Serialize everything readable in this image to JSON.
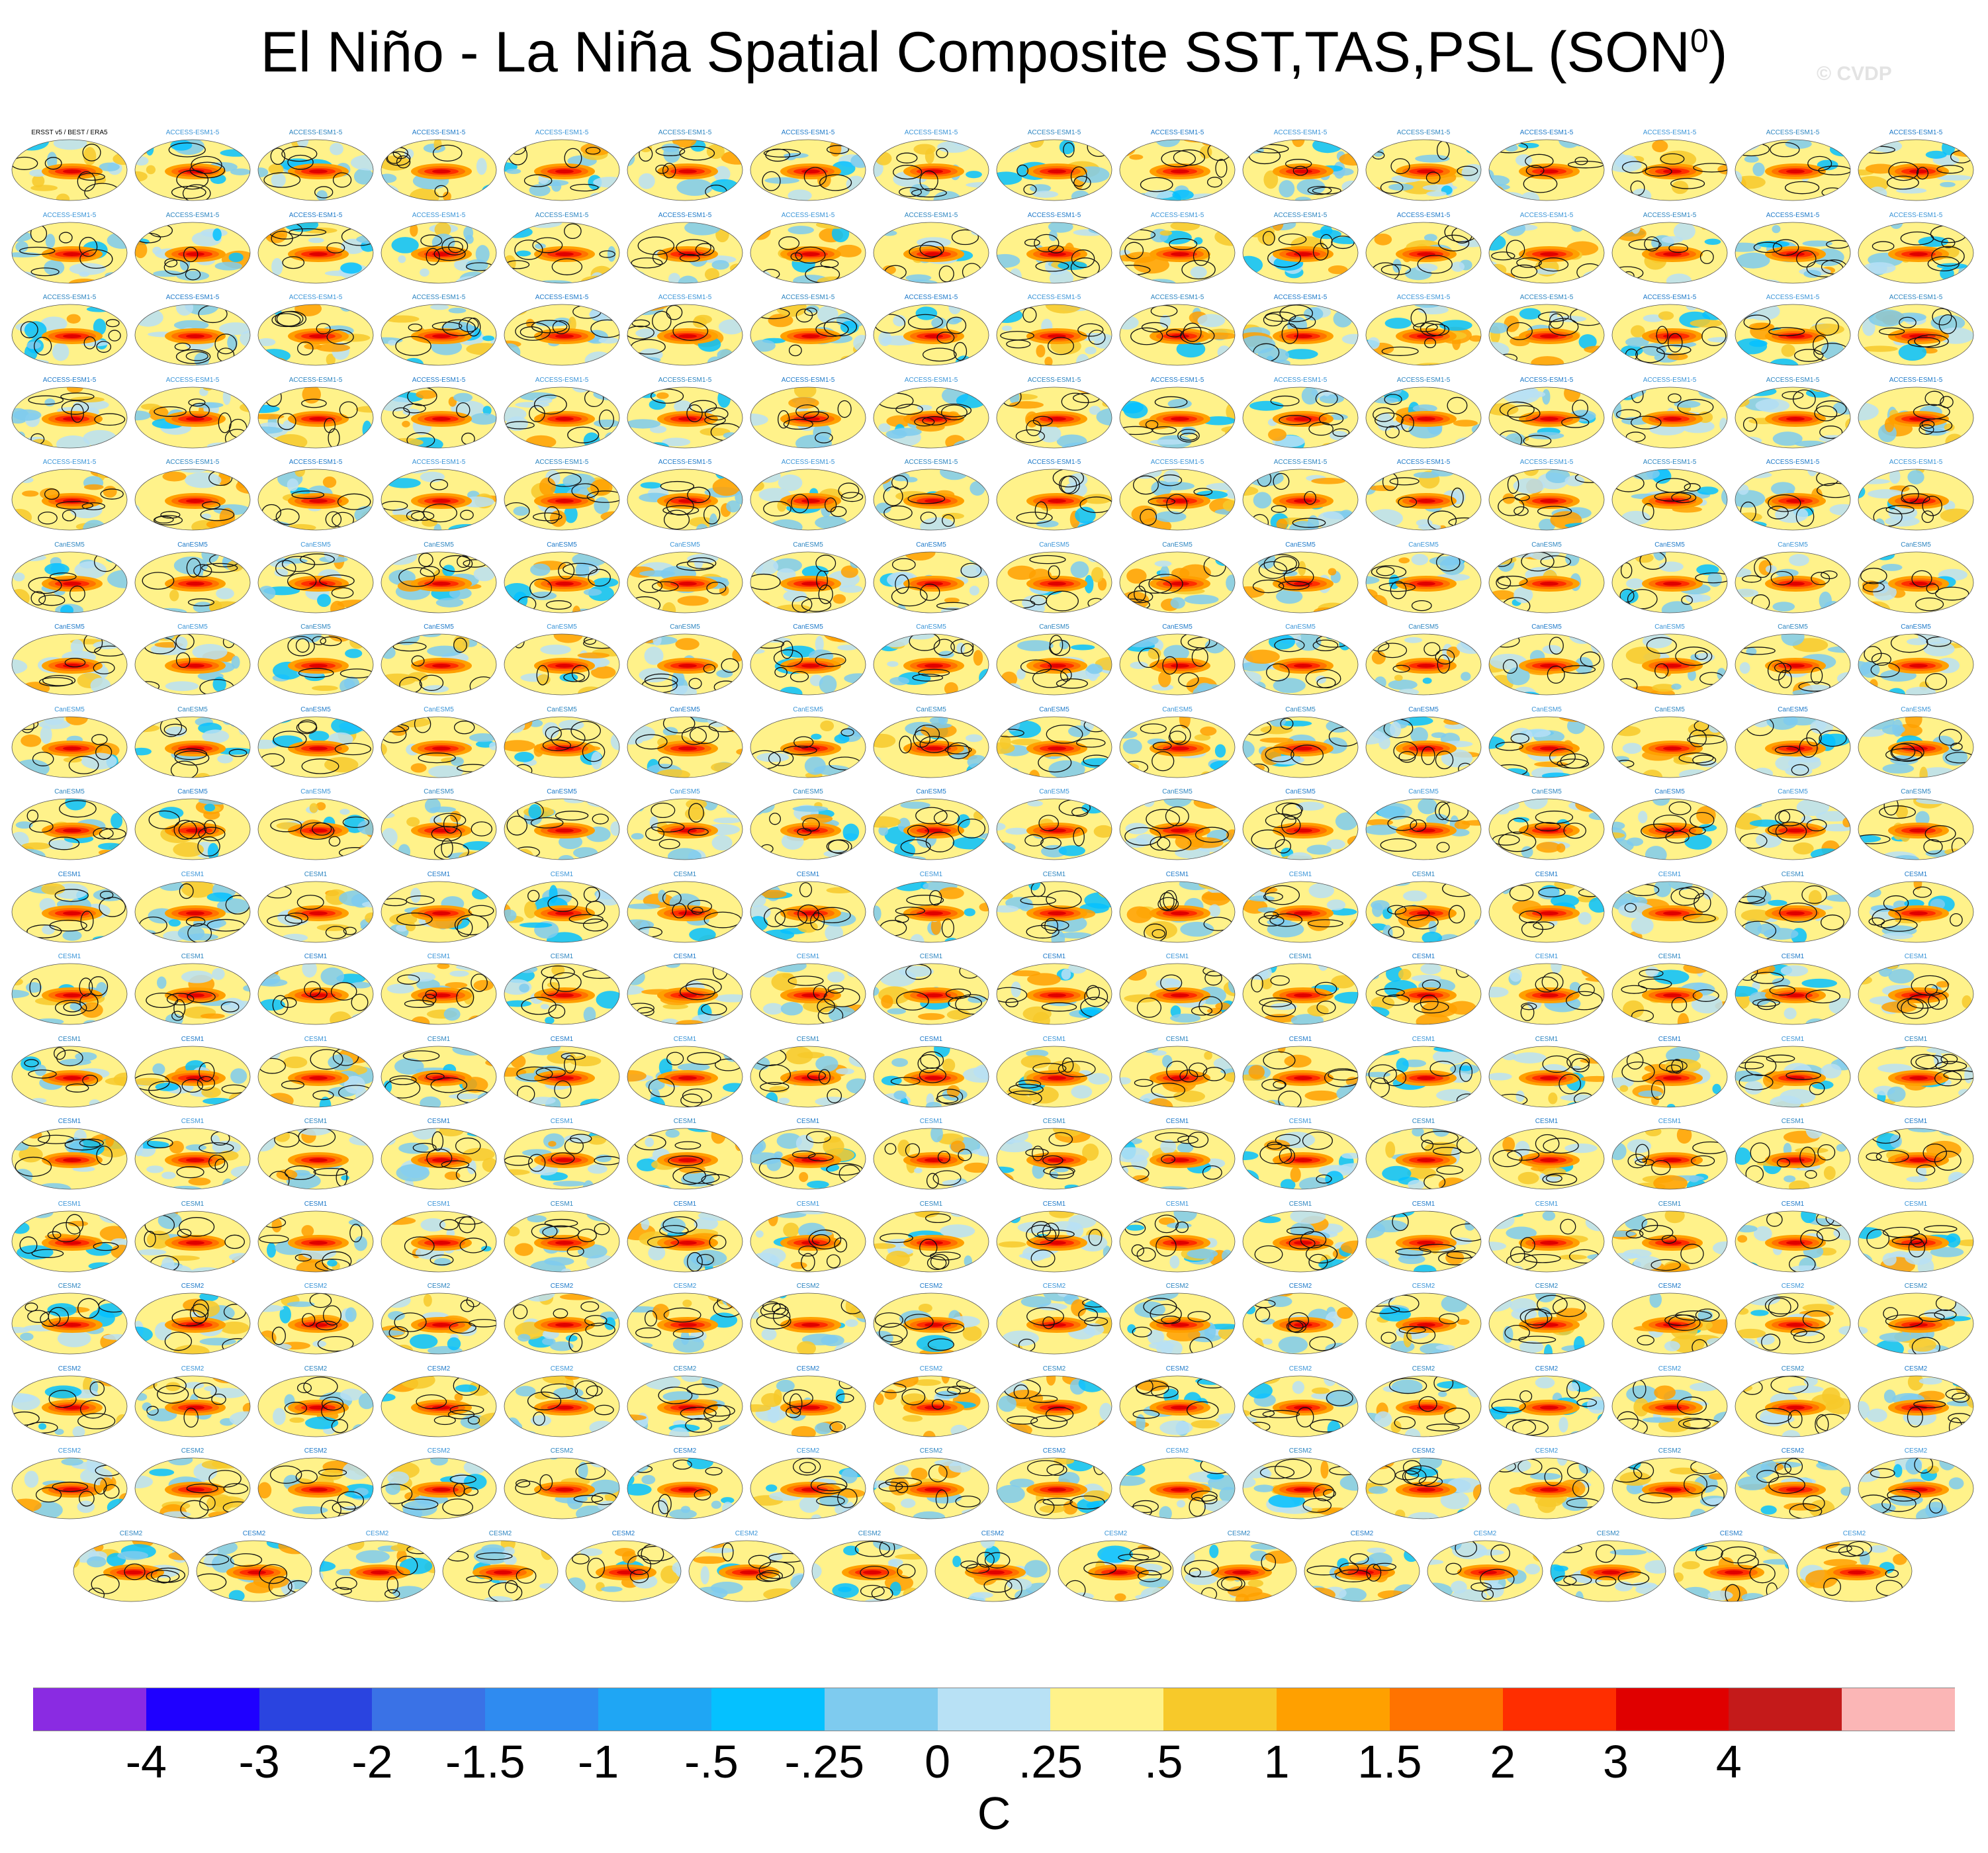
{
  "title": {
    "main": "El Niño - La Niña Spatial Composite SST,TAS,PSL (SON",
    "superscript": "0",
    "close": ")"
  },
  "watermark": "© CVDP",
  "panels": {
    "count": 287,
    "per_row": 16,
    "last_row_count": 15,
    "first_label": "ERSST v5 / BEST / ERA5",
    "repeat_labels": [
      "ACCESS-ESM1-5",
      "CanESM5",
      "CESM1",
      "CESM2"
    ]
  },
  "chart_data": {
    "type": "heatmap",
    "title": "El Niño - La Niña Spatial Composite SST,TAS,PSL (SON0)",
    "variables": [
      "SST",
      "TAS",
      "PSL"
    ],
    "season": "SON0",
    "colorbar": {
      "units": "C",
      "labels": [
        "-4",
        "-3",
        "-2",
        "-1.5",
        "-1",
        "-.5",
        "-.25",
        "0",
        ".25",
        ".5",
        "1",
        "1.5",
        "2",
        "3",
        "4"
      ],
      "levels": [
        -4,
        -3,
        -2,
        -1.5,
        -1,
        -0.5,
        -0.25,
        0,
        0.25,
        0.5,
        1,
        1.5,
        2,
        3,
        4
      ],
      "colors": [
        "#8a2be2",
        "#1f00ff",
        "#2a44e0",
        "#3a72e6",
        "#2f8bf0",
        "#1fa6f4",
        "#05c1ff",
        "#7ecbef",
        "#b8e1f5",
        "#fff28a",
        "#f7c92a",
        "#ffa000",
        "#ff7300",
        "#ff2e00",
        "#e00000",
        "#c41a1a",
        "#fbb6b6"
      ]
    }
  }
}
